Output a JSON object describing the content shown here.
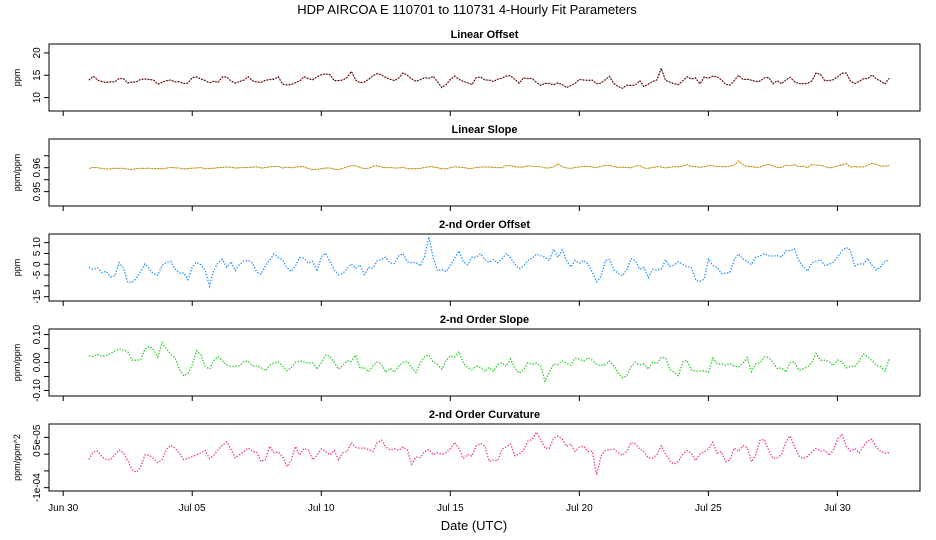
{
  "title": "HDP    AIRCOA E    110701 to 110731    4-Hourly Fit Parameters",
  "xlabel": "Date (UTC)",
  "x_ticks": [
    "Jun 30",
    "Jul 05",
    "Jul 10",
    "Jul 15",
    "Jul 20",
    "Jul 25",
    "Jul 30"
  ],
  "x_tick_days": [
    0,
    5,
    10,
    15,
    20,
    25,
    30
  ],
  "x_range": [
    -0.55,
    33.2
  ],
  "colors": {
    "linear_offset": "#8b0000",
    "linear_slope": "#ffa500",
    "second_offset": "#1e90ff",
    "second_slope": "#22cc22",
    "second_curvature": "#ee3399"
  },
  "chart_data": [
    {
      "type": "line",
      "title": "Linear Offset",
      "ylabel": "ppm",
      "ylim": [
        7,
        22
      ],
      "yticks": [
        10,
        15,
        20
      ],
      "ytick_labels": [
        "10",
        "15",
        "20"
      ],
      "series": [
        {
          "name": "Linear Offset",
          "color_key": "linear_offset",
          "x_start": 1.0,
          "x_end": 32.0,
          "step": 0.1667,
          "mean": 14.2,
          "trend_end": 13.3,
          "amplitude": 0.75,
          "amplitude_growth": 0.8,
          "seed": 11
        }
      ]
    },
    {
      "type": "line",
      "title": "Linear Slope",
      "ylabel": "ppm/ppm",
      "ylim": [
        0.944,
        0.972
      ],
      "yticks": [
        0.95,
        0.955,
        0.96,
        0.965
      ],
      "ytick_labels": [
        "0.95",
        "",
        "0.96",
        ""
      ],
      "series": [
        {
          "name": "Linear Slope",
          "color_key": "linear_slope",
          "x_start": 1.0,
          "x_end": 32.0,
          "step": 0.1667,
          "mean": 0.9598,
          "trend_end": 0.9607,
          "amplitude": 0.00035,
          "amplitude_growth": 1.2,
          "seed": 23
        }
      ]
    },
    {
      "type": "line",
      "title": "2-nd Order Offset",
      "ylabel": "ppm",
      "ylim": [
        -17,
        14
      ],
      "yticks": [
        -15,
        -10,
        -5,
        0,
        5,
        10
      ],
      "ytick_labels": [
        "-15",
        "",
        "-5",
        "0",
        "5",
        "10"
      ],
      "series": [
        {
          "name": "2-nd Order Offset",
          "color_key": "second_offset",
          "x_start": 1.0,
          "x_end": 32.0,
          "step": 0.1667,
          "mean": -1.0,
          "trend_end": 2.5,
          "amplitude": 4.2,
          "amplitude_growth": 0.2,
          "seed": 37
        }
      ]
    },
    {
      "type": "line",
      "title": "2-nd Order Slope",
      "ylabel": "ppm/ppm",
      "ylim": [
        -0.12,
        0.12
      ],
      "yticks": [
        -0.1,
        -0.05,
        0,
        0.05,
        0.1
      ],
      "ytick_labels": [
        "-0.10",
        "",
        "0.00",
        "",
        "0.10"
      ],
      "series": [
        {
          "name": "2-nd Order Slope",
          "color_key": "second_slope",
          "x_start": 1.0,
          "x_end": 32.0,
          "step": 0.1667,
          "mean": 0.01,
          "trend_end": -0.02,
          "amplitude": 0.03,
          "amplitude_growth": 0.2,
          "seed": 41
        }
      ]
    },
    {
      "type": "line",
      "title": "2-nd Order Curvature",
      "ylabel": "ppm/ppm^2",
      "ylim": [
        -0.00011,
        9e-05
      ],
      "yticks": [
        -0.0001,
        -5e-05,
        0,
        5e-05
      ],
      "ytick_labels": [
        "-1e-04",
        "",
        "0",
        "5e-05"
      ],
      "series": [
        {
          "name": "2-nd Order Curvature",
          "color_key": "second_curvature",
          "x_start": 1.0,
          "x_end": 32.0,
          "step": 0.1667,
          "mean": 0.0,
          "trend_end": 1.5e-05,
          "amplitude": 2.6e-05,
          "amplitude_growth": 0.2,
          "seed": 53
        }
      ]
    }
  ]
}
